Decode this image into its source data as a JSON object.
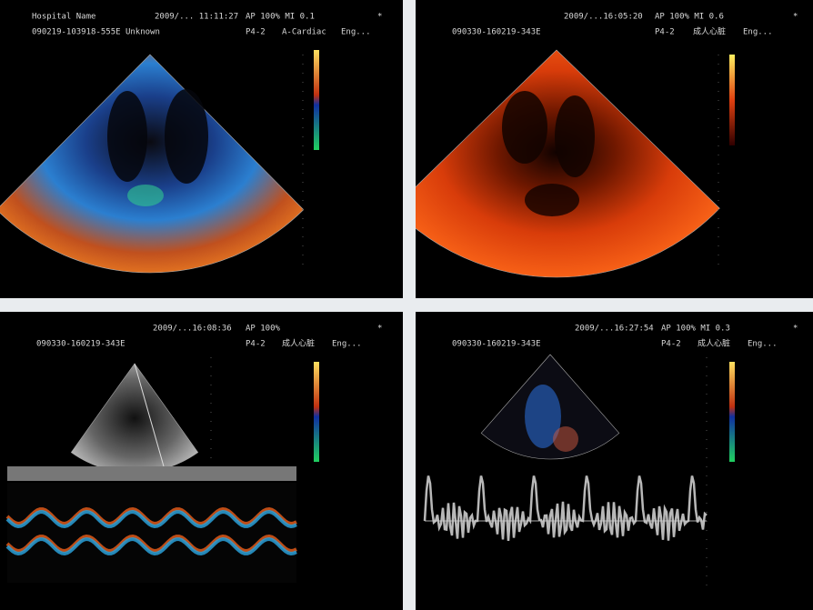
{
  "panels": [
    {
      "line1": [
        "Hospital Name",
        "2009/... 11:11:27",
        "AP 100% MI 0.1"
      ],
      "line2": [
        "090219-103918-555E Unknown",
        "P4-2",
        "A-Cardiac",
        "Eng..."
      ]
    },
    {
      "line1": [
        "2009/...16:05:20",
        "AP 100% MI 0.6"
      ],
      "line2": [
        "090330-160219-343E",
        "P4-2",
        "成人心脏",
        "Eng..."
      ]
    },
    {
      "line1": [
        "2009/...16:08:36",
        "AP 100%"
      ],
      "line2": [
        "090330-160219-343E",
        "P4-2",
        "成人心脏",
        "Eng..."
      ]
    },
    {
      "line1": [
        "2009/...16:27:54",
        "AP 100% MI 0.3"
      ],
      "line2": [
        "090330-160219-343E",
        "P4-2",
        "成人心脏",
        "Eng..."
      ]
    }
  ]
}
